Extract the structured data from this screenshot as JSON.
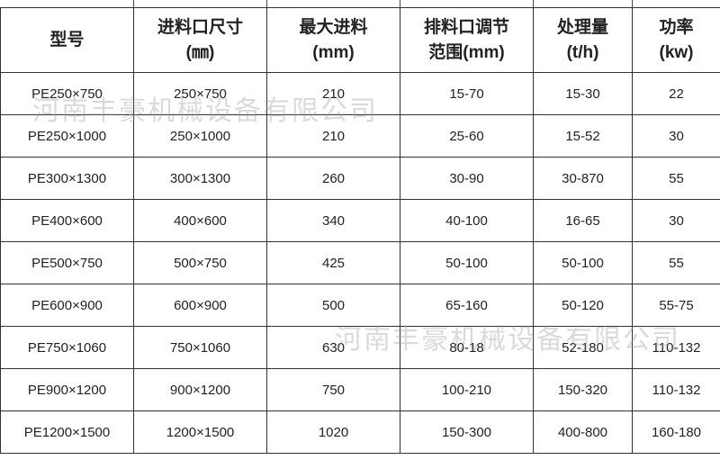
{
  "table": {
    "headers": [
      {
        "line1": "型号",
        "line2": ""
      },
      {
        "line1": "进料口尺寸",
        "line2": "(㎜)"
      },
      {
        "line1": "最大进料",
        "line2": "(mm)"
      },
      {
        "line1": "排料口调节",
        "line2": "范围(mm)"
      },
      {
        "line1": "处理量",
        "line2": "(t/h)"
      },
      {
        "line1": "功率",
        "line2": "(kw)"
      }
    ],
    "rows": [
      [
        "PE250×750",
        "250×750",
        "210",
        "15-70",
        "15-30",
        "22"
      ],
      [
        "PE250×1000",
        "250×1000",
        "210",
        "25-60",
        "15-52",
        "30"
      ],
      [
        "PE300×1300",
        "300×1300",
        "260",
        "30-90",
        "30-870",
        "55"
      ],
      [
        "PE400×600",
        "400×600",
        "340",
        "40-100",
        "16-65",
        "30"
      ],
      [
        "PE500×750",
        "500×750",
        "425",
        "50-100",
        "50-100",
        "55"
      ],
      [
        "PE600×900",
        "600×900",
        "500",
        "65-160",
        "50-120",
        "55-75"
      ],
      [
        "PE750×1060",
        "750×1060",
        "630",
        "80-18",
        "52-180",
        "110-132"
      ],
      [
        "PE900×1200",
        "900×1200",
        "750",
        "100-210",
        "150-320",
        "110-132"
      ],
      [
        "PE1200×1500",
        "1200×1500",
        "1020",
        "150-300",
        "400-800",
        "160-180"
      ]
    ]
  },
  "watermark": "河南丰豪机械设备有限公司"
}
